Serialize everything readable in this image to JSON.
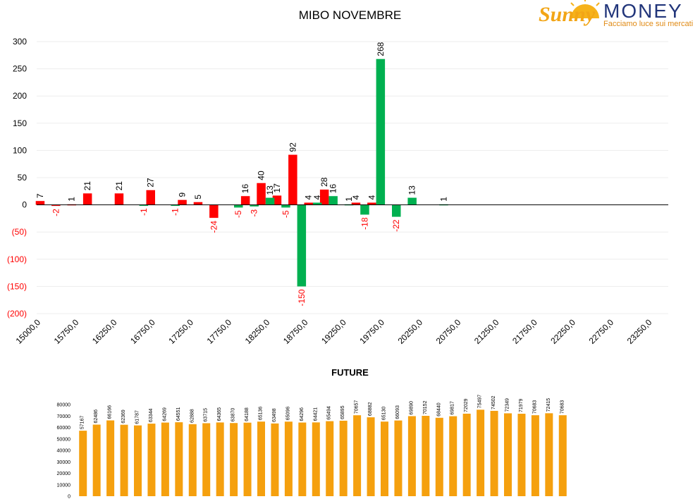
{
  "logo": {
    "brand": "MONEY",
    "script": "Sunny",
    "tagline": "Facciamo luce sui mercati"
  },
  "chart_data": [
    {
      "type": "bar",
      "title": "MIBO NOVEMBRE",
      "xlabel": "",
      "ylabel": "",
      "ylim": [
        -200,
        300
      ],
      "y_ticks": [
        {
          "value": 300,
          "label": "300"
        },
        {
          "value": 250,
          "label": "250"
        },
        {
          "value": 200,
          "label": "200"
        },
        {
          "value": 150,
          "label": "150"
        },
        {
          "value": 100,
          "label": "100"
        },
        {
          "value": 50,
          "label": "50"
        },
        {
          "value": 0,
          "label": "0"
        },
        {
          "value": -50,
          "label": "(50)"
        },
        {
          "value": -100,
          "label": "(100)"
        },
        {
          "value": -150,
          "label": "(150)"
        },
        {
          "value": -200,
          "label": "(200)"
        }
      ],
      "x_tick_labels": [
        "15000,0",
        "15750,0",
        "16250,0",
        "16750,0",
        "17250,0",
        "17750,0",
        "18250,0",
        "18750,0",
        "19250,0",
        "19750,0",
        "20250,0",
        "20750,0",
        "21250,0",
        "21750,0",
        "22250,0",
        "22750,0",
        "23250,0"
      ],
      "grid": true,
      "legend": "none",
      "colors": {
        "red": "#ff0000",
        "green": "#00b050",
        "neg_label": "#ff0000"
      },
      "series": [
        {
          "color": "red",
          "values": [
            7,
            -2,
            1,
            21,
            null,
            21,
            null,
            27,
            null,
            9,
            5,
            -24,
            null,
            16,
            40,
            17,
            92,
            4,
            28,
            null,
            4,
            4,
            null,
            null,
            null,
            null,
            null,
            null,
            null,
            null,
            null,
            null,
            null,
            null,
            null,
            null,
            null,
            null,
            null,
            null
          ]
        },
        {
          "color": "green",
          "values": [
            null,
            null,
            null,
            null,
            null,
            null,
            -1,
            null,
            -1,
            null,
            null,
            null,
            -5,
            -3,
            13,
            -5,
            -150,
            4,
            16,
            1,
            -18,
            268,
            -22,
            13,
            null,
            1,
            null,
            null,
            null,
            null,
            null,
            null,
            null,
            null,
            null,
            null,
            null,
            null,
            null,
            null
          ]
        }
      ]
    },
    {
      "type": "bar",
      "title": "FUTURE",
      "xlabel": "",
      "ylabel": "",
      "ylim": [
        0,
        80000
      ],
      "y_ticks": [
        80000,
        70000,
        60000,
        50000,
        40000,
        30000,
        20000,
        10000,
        0
      ],
      "color": "#f5a00e",
      "values": [
        57167,
        62486,
        66166,
        62369,
        61787,
        63344,
        64269,
        64551,
        62888,
        63715,
        64365,
        63870,
        64188,
        65136,
        63498,
        65096,
        64296,
        64421,
        65494,
        65895,
        70657,
        68882,
        65130,
        66093,
        69890,
        70152,
        68440,
        69817,
        72029,
        75497,
        74502,
        72349,
        71979,
        70683,
        72415,
        70683
      ]
    }
  ]
}
